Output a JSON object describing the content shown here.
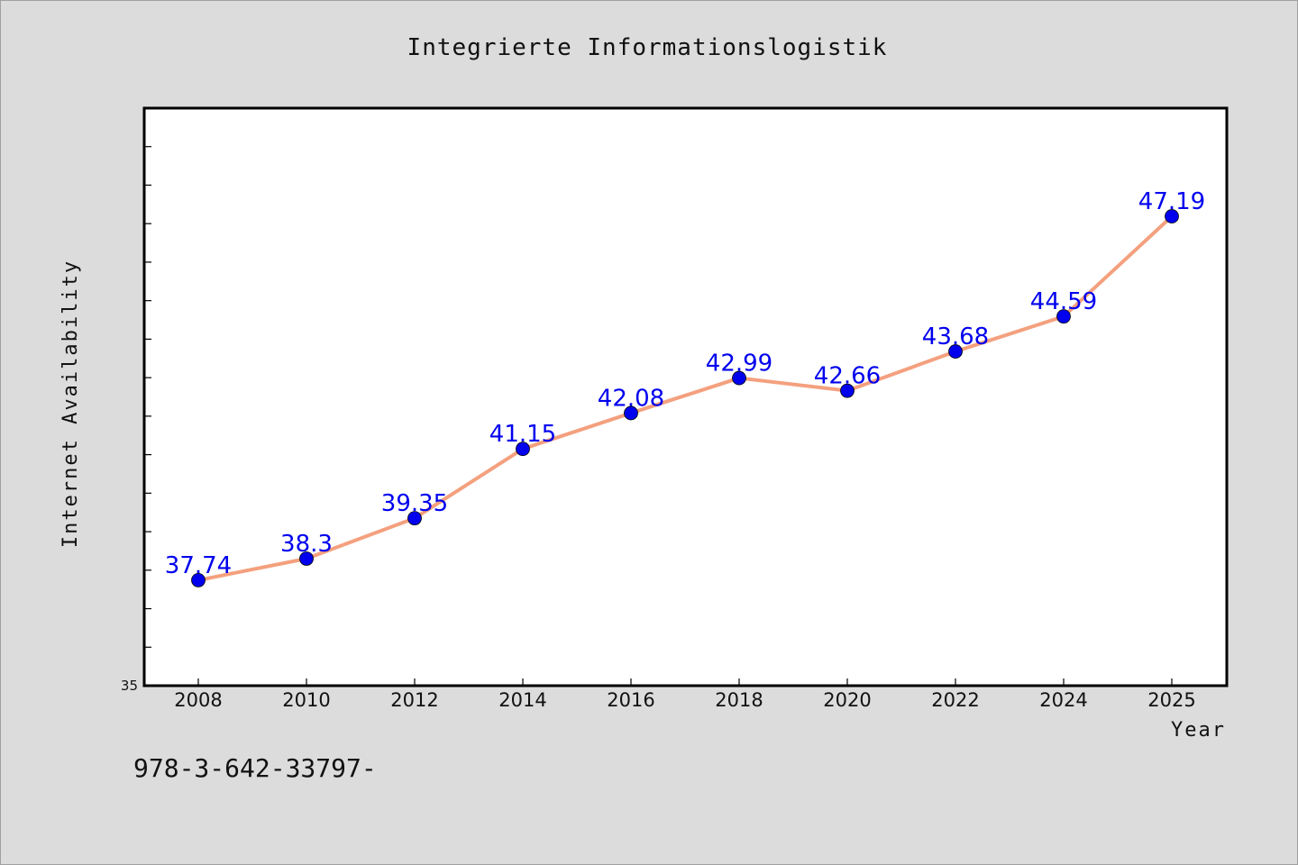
{
  "chart_data": {
    "type": "line",
    "title": "Integrierte Informationslogistik",
    "xlabel": "Year",
    "ylabel": "Internet Availability",
    "categories": [
      "2008",
      "2010",
      "2012",
      "2014",
      "2016",
      "2018",
      "2020",
      "2022",
      "2024",
      "2025"
    ],
    "series": [
      {
        "values": [
          37.74,
          38.3,
          39.35,
          41.15,
          42.08,
          42.99,
          42.66,
          43.68,
          44.59,
          47.19
        ]
      }
    ],
    "data_labels": [
      "37.74",
      "38.3",
      "39.35",
      "41.15",
      "42.08",
      "42.99",
      "42.66",
      "43.68",
      "44.59",
      "47.19"
    ],
    "ylim": [
      35,
      50
    ],
    "y_tick_labels": [
      "35"
    ],
    "grid": false,
    "line_color": "#f4a07e",
    "marker_color": "#0000ee",
    "label_color": "#0000ee"
  },
  "footer": {
    "isbn": "978-3-642-33797-"
  }
}
